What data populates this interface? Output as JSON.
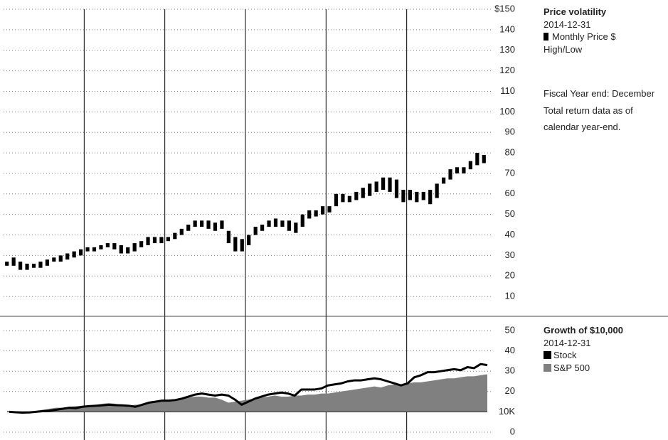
{
  "chart_data": [
    {
      "type": "range",
      "title": "Price volatility",
      "date": "2014-12-31",
      "series": [
        {
          "name": "Monthly Price $ High/Low",
          "color": "#000000",
          "low": [
            25,
            25,
            23,
            23,
            24,
            24,
            25,
            27,
            27,
            28,
            29,
            30,
            32,
            32,
            33,
            34,
            33,
            31,
            31,
            32,
            34,
            35,
            36,
            36,
            37,
            38,
            40,
            42,
            44,
            44,
            43,
            42,
            43,
            36,
            32,
            32,
            35,
            40,
            42,
            44,
            44,
            44,
            42,
            41,
            44,
            48,
            49,
            50,
            51,
            54,
            56,
            56,
            57,
            58,
            59,
            61,
            62,
            61,
            58,
            56,
            57,
            56,
            57,
            55,
            58,
            65,
            67,
            70,
            70,
            72,
            74,
            75
          ],
          "high": [
            27,
            29,
            27,
            26,
            26,
            27,
            28,
            29,
            30,
            31,
            32,
            33,
            34,
            34,
            35,
            36,
            36,
            35,
            34,
            36,
            37,
            39,
            39,
            39,
            39,
            41,
            43,
            45,
            47,
            47,
            47,
            46,
            47,
            42,
            39,
            38,
            40,
            44,
            45,
            47,
            48,
            47,
            47,
            46,
            50,
            52,
            52,
            54,
            54,
            60,
            60,
            59,
            61,
            63,
            65,
            66,
            68,
            68,
            67,
            62,
            62,
            61,
            61,
            62,
            65,
            68,
            72,
            73,
            73,
            76,
            80,
            79
          ]
        }
      ],
      "ylim": [
        0,
        150
      ],
      "yticks": [
        {
          "value": 150,
          "label": "$150"
        },
        140,
        130,
        120,
        110,
        100,
        90,
        80,
        70,
        60,
        50,
        40,
        30,
        20,
        10
      ],
      "grid": true,
      "notes": [
        "Fiscal Year end: December",
        "Total return data as of",
        "calendar year-end."
      ]
    },
    {
      "type": "line",
      "title": "Growth of $10,000",
      "date": "2014-12-31",
      "series": [
        {
          "name": "Stock",
          "type": "line",
          "color": "#000000",
          "values": [
            10,
            9.8,
            9.6,
            9.7,
            10,
            10.3,
            10.6,
            11,
            11.5,
            12,
            11.8,
            12.5,
            12.8,
            13,
            13.2,
            13.5,
            13.3,
            13.2,
            13,
            12.5,
            13.5,
            14.5,
            15,
            15.5,
            15.5,
            15.8,
            16.5,
            17.5,
            18.5,
            19,
            18.5,
            18,
            18.5,
            18,
            16,
            13.5,
            15,
            16.5,
            17.5,
            18.5,
            19,
            19.5,
            19,
            18,
            21,
            21,
            21,
            21.5,
            23,
            23.5,
            24,
            25,
            25.5,
            25.5,
            26,
            26.5,
            26,
            25,
            24,
            23,
            24,
            27,
            28,
            29.5,
            29.5,
            30,
            30.5,
            31,
            30.5,
            32,
            31.5,
            33.5,
            33
          ]
        },
        {
          "name": "S&P 500",
          "type": "area",
          "color": "#808080",
          "values": [
            10,
            10,
            9.8,
            10,
            10.5,
            11,
            11.5,
            12,
            12,
            12.5,
            12.8,
            13,
            13.2,
            13.5,
            14,
            14.3,
            14,
            13.5,
            13,
            13.5,
            13.5,
            14.5,
            15,
            15,
            15.5,
            15.8,
            16.5,
            17,
            17.5,
            17.5,
            17,
            17,
            16,
            14.5,
            15,
            15.5,
            16,
            16.5,
            17,
            17.5,
            18,
            17.5,
            17.5,
            18,
            18,
            18.5,
            18.5,
            19,
            19,
            19.5,
            20,
            20.5,
            21,
            21.5,
            22,
            22.5,
            22,
            23,
            23.5,
            23.5,
            24,
            24.5,
            24.5,
            25,
            25.5,
            26,
            26.5,
            26.5,
            27,
            27.5,
            27.5,
            28,
            28.5
          ]
        }
      ],
      "ylim": [
        0,
        50
      ],
      "yticks": [
        50,
        40,
        30,
        20,
        {
          "value": 10,
          "label": "10K"
        },
        0
      ],
      "grid": true
    }
  ]
}
